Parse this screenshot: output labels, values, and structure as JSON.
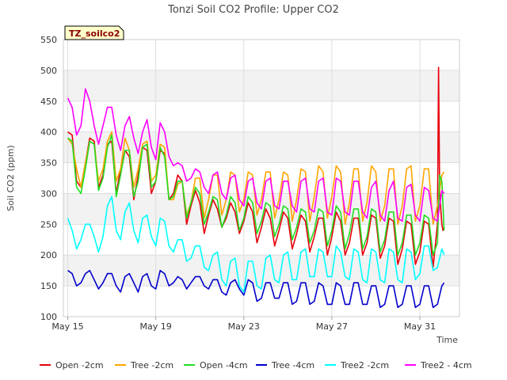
{
  "chart_data": {
    "type": "line",
    "title": "Tonzi Soil CO2 Profile: Upper CO2",
    "tag": "TZ_soilco2",
    "xlabel": "Time",
    "ylabel": "Soil CO2 (ppm)",
    "ylim": [
      100,
      550
    ],
    "yticks": [
      100,
      150,
      200,
      250,
      300,
      350,
      400,
      450,
      500,
      550
    ],
    "xlim": [
      14.8,
      32.8
    ],
    "xticks": [
      {
        "value": 15,
        "label": "May 15"
      },
      {
        "value": 19,
        "label": "May 19"
      },
      {
        "value": 23,
        "label": "May 23"
      },
      {
        "value": 27,
        "label": "May 27"
      },
      {
        "value": 31,
        "label": "May 31"
      }
    ],
    "grid": true,
    "legend_position": "bottom",
    "series": [
      {
        "name": "Open -2cm",
        "color": "#e8000b",
        "x": [
          15.0,
          15.2,
          15.4,
          15.6,
          15.8,
          16.0,
          16.2,
          16.4,
          16.6,
          16.8,
          17.0,
          17.2,
          17.4,
          17.6,
          17.8,
          18.0,
          18.2,
          18.4,
          18.6,
          18.8,
          19.0,
          19.2,
          19.4,
          19.6,
          19.8,
          20.0,
          20.2,
          20.4,
          20.6,
          20.8,
          21.0,
          21.2,
          21.4,
          21.6,
          21.8,
          22.0,
          22.2,
          22.4,
          22.6,
          22.8,
          23.0,
          23.2,
          23.4,
          23.6,
          23.8,
          24.0,
          24.2,
          24.4,
          24.6,
          24.8,
          25.0,
          25.2,
          25.4,
          25.6,
          25.8,
          26.0,
          26.2,
          26.4,
          26.6,
          26.8,
          27.0,
          27.2,
          27.4,
          27.6,
          27.8,
          28.0,
          28.2,
          28.4,
          28.6,
          28.8,
          29.0,
          29.2,
          29.4,
          29.6,
          29.8,
          30.0,
          30.2,
          30.4,
          30.6,
          30.8,
          31.0,
          31.2,
          31.4,
          31.6,
          31.8,
          31.85,
          31.9,
          32.0,
          32.05,
          32.1
        ],
        "y": [
          400,
          395,
          320,
          310,
          350,
          390,
          385,
          310,
          330,
          380,
          385,
          300,
          340,
          370,
          360,
          290,
          330,
          375,
          370,
          300,
          320,
          370,
          365,
          290,
          300,
          330,
          320,
          250,
          280,
          305,
          285,
          235,
          265,
          290,
          275,
          245,
          260,
          285,
          270,
          235,
          255,
          285,
          270,
          220,
          245,
          275,
          260,
          215,
          240,
          270,
          260,
          210,
          235,
          265,
          255,
          205,
          230,
          260,
          260,
          200,
          230,
          270,
          255,
          200,
          220,
          260,
          260,
          200,
          220,
          265,
          260,
          195,
          215,
          260,
          255,
          185,
          210,
          255,
          250,
          185,
          205,
          255,
          250,
          180,
          250,
          505,
          300,
          250,
          240,
          245
        ]
      },
      {
        "name": "Tree -2cm",
        "color": "#ffa500",
        "x": [
          15.0,
          15.2,
          15.4,
          15.6,
          15.8,
          16.0,
          16.2,
          16.4,
          16.6,
          16.8,
          17.0,
          17.2,
          17.4,
          17.6,
          17.8,
          18.0,
          18.2,
          18.4,
          18.6,
          18.8,
          19.0,
          19.2,
          19.4,
          19.6,
          19.8,
          20.0,
          20.2,
          20.4,
          20.6,
          20.8,
          21.0,
          21.2,
          21.4,
          21.6,
          21.8,
          22.0,
          22.2,
          22.4,
          22.6,
          22.8,
          23.0,
          23.2,
          23.4,
          23.6,
          23.8,
          24.0,
          24.2,
          24.4,
          24.6,
          24.8,
          25.0,
          25.2,
          25.4,
          25.6,
          25.8,
          26.0,
          26.2,
          26.4,
          26.6,
          26.8,
          27.0,
          27.2,
          27.4,
          27.6,
          27.8,
          28.0,
          28.2,
          28.4,
          28.6,
          28.8,
          29.0,
          29.2,
          29.4,
          29.6,
          29.8,
          30.0,
          30.2,
          30.4,
          30.6,
          30.8,
          31.0,
          31.2,
          31.4,
          31.6,
          31.8,
          32.0,
          32.1
        ],
        "y": [
          390,
          380,
          340,
          310,
          350,
          385,
          380,
          320,
          340,
          385,
          400,
          320,
          340,
          390,
          370,
          310,
          340,
          380,
          385,
          320,
          330,
          380,
          375,
          290,
          290,
          315,
          320,
          265,
          285,
          325,
          325,
          260,
          290,
          330,
          330,
          265,
          290,
          335,
          330,
          270,
          290,
          335,
          330,
          265,
          290,
          335,
          335,
          260,
          290,
          335,
          330,
          255,
          290,
          340,
          335,
          255,
          295,
          345,
          335,
          260,
          295,
          345,
          335,
          250,
          285,
          340,
          340,
          255,
          285,
          345,
          335,
          255,
          280,
          340,
          340,
          250,
          280,
          340,
          345,
          255,
          280,
          340,
          340,
          250,
          280,
          330,
          335
        ]
      },
      {
        "name": "Open -4cm",
        "color": "#22dd22",
        "x": [
          15.0,
          15.2,
          15.4,
          15.6,
          15.8,
          16.0,
          16.2,
          16.4,
          16.6,
          16.8,
          17.0,
          17.2,
          17.4,
          17.6,
          17.8,
          18.0,
          18.2,
          18.4,
          18.6,
          18.8,
          19.0,
          19.2,
          19.4,
          19.6,
          19.8,
          20.0,
          20.2,
          20.4,
          20.6,
          20.8,
          21.0,
          21.2,
          21.4,
          21.6,
          21.8,
          22.0,
          22.2,
          22.4,
          22.6,
          22.8,
          23.0,
          23.2,
          23.4,
          23.6,
          23.8,
          24.0,
          24.2,
          24.4,
          24.6,
          24.8,
          25.0,
          25.2,
          25.4,
          25.6,
          25.8,
          26.0,
          26.2,
          26.4,
          26.6,
          26.8,
          27.0,
          27.2,
          27.4,
          27.6,
          27.8,
          28.0,
          28.2,
          28.4,
          28.6,
          28.8,
          29.0,
          29.2,
          29.4,
          29.6,
          29.8,
          30.0,
          30.2,
          30.4,
          30.6,
          30.8,
          31.0,
          31.2,
          31.4,
          31.6,
          31.8,
          31.9,
          32.0,
          32.1
        ],
        "y": [
          390,
          385,
          310,
          300,
          340,
          385,
          380,
          305,
          325,
          375,
          395,
          295,
          330,
          370,
          370,
          295,
          320,
          375,
          380,
          310,
          320,
          375,
          360,
          290,
          295,
          320,
          320,
          260,
          285,
          310,
          300,
          250,
          270,
          295,
          290,
          245,
          265,
          295,
          285,
          240,
          260,
          295,
          285,
          235,
          255,
          285,
          280,
          230,
          250,
          280,
          275,
          225,
          245,
          275,
          270,
          220,
          240,
          275,
          270,
          215,
          240,
          280,
          270,
          210,
          235,
          275,
          275,
          210,
          230,
          275,
          270,
          205,
          225,
          270,
          270,
          200,
          220,
          265,
          265,
          200,
          220,
          265,
          260,
          200,
          220,
          330,
          320,
          240
        ]
      },
      {
        "name": "Tree -4cm",
        "color": "#0000cd",
        "x": [
          15.0,
          15.2,
          15.4,
          15.6,
          15.8,
          16.0,
          16.2,
          16.4,
          16.6,
          16.8,
          17.0,
          17.2,
          17.4,
          17.6,
          17.8,
          18.0,
          18.2,
          18.4,
          18.6,
          18.8,
          19.0,
          19.2,
          19.4,
          19.6,
          19.8,
          20.0,
          20.2,
          20.4,
          20.6,
          20.8,
          21.0,
          21.2,
          21.4,
          21.6,
          21.8,
          22.0,
          22.2,
          22.4,
          22.6,
          22.8,
          23.0,
          23.2,
          23.4,
          23.6,
          23.8,
          24.0,
          24.2,
          24.4,
          24.6,
          24.8,
          25.0,
          25.2,
          25.4,
          25.6,
          25.8,
          26.0,
          26.2,
          26.4,
          26.6,
          26.8,
          27.0,
          27.2,
          27.4,
          27.6,
          27.8,
          28.0,
          28.2,
          28.4,
          28.6,
          28.8,
          29.0,
          29.2,
          29.4,
          29.6,
          29.8,
          30.0,
          30.2,
          30.4,
          30.6,
          30.8,
          31.0,
          31.2,
          31.4,
          31.6,
          31.8,
          32.0,
          32.1
        ],
        "y": [
          175,
          170,
          150,
          155,
          170,
          175,
          160,
          145,
          155,
          170,
          170,
          150,
          140,
          165,
          170,
          155,
          140,
          165,
          170,
          150,
          145,
          175,
          170,
          150,
          155,
          165,
          160,
          145,
          155,
          165,
          165,
          150,
          145,
          160,
          160,
          140,
          135,
          155,
          160,
          145,
          135,
          160,
          155,
          125,
          130,
          155,
          155,
          130,
          130,
          155,
          155,
          120,
          125,
          155,
          155,
          120,
          125,
          155,
          150,
          120,
          120,
          155,
          150,
          120,
          120,
          155,
          155,
          120,
          120,
          150,
          150,
          115,
          120,
          150,
          150,
          115,
          120,
          150,
          150,
          115,
          120,
          150,
          150,
          115,
          120,
          150,
          155
        ]
      },
      {
        "name": "Tree2 -2cm",
        "color": "#00ffff",
        "x": [
          15.0,
          15.2,
          15.4,
          15.6,
          15.8,
          16.0,
          16.2,
          16.4,
          16.6,
          16.8,
          17.0,
          17.2,
          17.4,
          17.6,
          17.8,
          18.0,
          18.2,
          18.4,
          18.6,
          18.8,
          19.0,
          19.2,
          19.4,
          19.6,
          19.8,
          20.0,
          20.2,
          20.4,
          20.6,
          20.8,
          21.0,
          21.2,
          21.4,
          21.6,
          21.8,
          22.0,
          22.2,
          22.4,
          22.6,
          22.8,
          23.0,
          23.2,
          23.4,
          23.6,
          23.8,
          24.0,
          24.2,
          24.4,
          24.6,
          24.8,
          25.0,
          25.2,
          25.4,
          25.6,
          25.8,
          26.0,
          26.2,
          26.4,
          26.6,
          26.8,
          27.0,
          27.2,
          27.4,
          27.6,
          27.8,
          28.0,
          28.2,
          28.4,
          28.6,
          28.8,
          29.0,
          29.2,
          29.4,
          29.6,
          29.8,
          30.0,
          30.2,
          30.4,
          30.6,
          30.8,
          31.0,
          31.2,
          31.4,
          31.6,
          31.8,
          32.0,
          32.1
        ],
        "y": [
          260,
          240,
          210,
          225,
          250,
          250,
          230,
          205,
          230,
          280,
          295,
          240,
          225,
          270,
          285,
          240,
          220,
          260,
          265,
          230,
          215,
          260,
          255,
          215,
          205,
          225,
          225,
          190,
          195,
          215,
          215,
          180,
          175,
          200,
          205,
          160,
          150,
          190,
          195,
          150,
          140,
          190,
          190,
          150,
          145,
          195,
          200,
          160,
          155,
          200,
          205,
          160,
          160,
          205,
          210,
          165,
          165,
          210,
          205,
          165,
          165,
          215,
          205,
          165,
          160,
          210,
          205,
          160,
          155,
          210,
          205,
          160,
          155,
          210,
          205,
          160,
          155,
          210,
          205,
          160,
          170,
          215,
          215,
          175,
          180,
          210,
          200
        ]
      },
      {
        "name": "Tree2 - 4cm",
        "color": "#ff00ff",
        "x": [
          15.0,
          15.2,
          15.4,
          15.6,
          15.8,
          16.0,
          16.2,
          16.4,
          16.6,
          16.8,
          17.0,
          17.2,
          17.4,
          17.6,
          17.8,
          18.0,
          18.2,
          18.4,
          18.6,
          18.8,
          19.0,
          19.2,
          19.4,
          19.6,
          19.8,
          20.0,
          20.2,
          20.4,
          20.6,
          20.8,
          21.0,
          21.2,
          21.4,
          21.6,
          21.8,
          22.0,
          22.2,
          22.4,
          22.6,
          22.8,
          23.0,
          23.2,
          23.4,
          23.6,
          23.8,
          24.0,
          24.2,
          24.4,
          24.6,
          24.8,
          25.0,
          25.2,
          25.4,
          25.6,
          25.8,
          26.0,
          26.2,
          26.4,
          26.6,
          26.8,
          27.0,
          27.2,
          27.4,
          27.6,
          27.8,
          28.0,
          28.2,
          28.4,
          28.6,
          28.8,
          29.0,
          29.2,
          29.4,
          29.6,
          29.8,
          30.0,
          30.2,
          30.4,
          30.6,
          30.8,
          31.0,
          31.2,
          31.4,
          31.6,
          31.8,
          32.0,
          32.1
        ],
        "y": [
          455,
          440,
          395,
          410,
          470,
          450,
          410,
          380,
          410,
          440,
          440,
          395,
          370,
          410,
          425,
          390,
          365,
          400,
          420,
          375,
          355,
          415,
          400,
          360,
          345,
          350,
          345,
          320,
          325,
          340,
          335,
          310,
          300,
          330,
          335,
          300,
          290,
          325,
          330,
          290,
          280,
          320,
          325,
          285,
          275,
          320,
          325,
          280,
          275,
          320,
          320,
          280,
          270,
          320,
          325,
          275,
          270,
          320,
          325,
          270,
          265,
          325,
          320,
          270,
          265,
          320,
          320,
          270,
          260,
          310,
          320,
          265,
          255,
          305,
          320,
          260,
          255,
          310,
          315,
          265,
          255,
          310,
          305,
          260,
          255,
          305,
          300
        ]
      }
    ]
  }
}
